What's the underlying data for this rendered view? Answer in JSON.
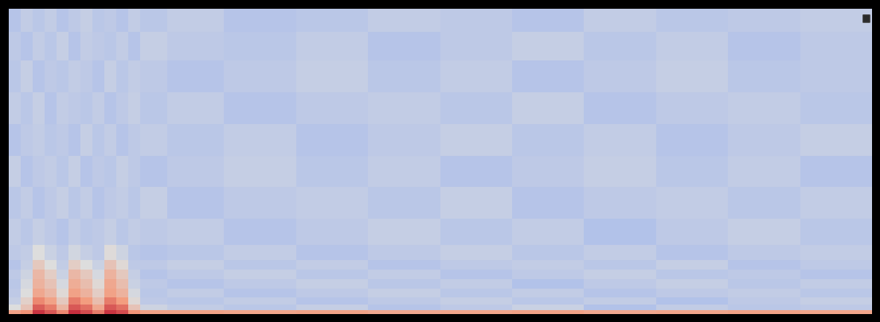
{
  "chart_data": {
    "type": "heatmap",
    "color": "coolwarm",
    "tick_labels": false,
    "xlim": [
      0,
      1085
    ],
    "ylim": [
      0,
      385
    ],
    "zlim": [
      -100,
      0
    ],
    "x": [
      7.5,
      22.5,
      37.5,
      52.5,
      67.5,
      82.5,
      97.5,
      112.5,
      127.5,
      142.5,
      157.5,
      172.5,
      225,
      316,
      406,
      497,
      587,
      678,
      768,
      859,
      949,
      1040
    ],
    "y": [
      2,
      8,
      16,
      26,
      38,
      50,
      62,
      74,
      100,
      140,
      180,
      220,
      260,
      300,
      340,
      372
    ],
    "cells": [
      [
        -28,
        -24,
        -8,
        -14,
        -22,
        -7,
        -12,
        -20,
        -8,
        -12,
        -24,
        -28,
        -28,
        -29,
        -28,
        -30,
        -29,
        -28,
        -30,
        -29,
        -28,
        -29
      ],
      [
        -50,
        -40,
        -15,
        -20,
        -35,
        -14,
        -18,
        -30,
        -14,
        -18,
        -40,
        -54,
        -57,
        -59,
        -56,
        -60,
        -58,
        -55,
        -61,
        -57,
        -59,
        -58
      ],
      [
        -56,
        -45,
        -22,
        -28,
        -42,
        -20,
        -26,
        -38,
        -20,
        -26,
        -48,
        -58,
        -59,
        -57,
        -60,
        -58,
        -56,
        -59,
        -57,
        -61,
        -58,
        -56
      ],
      [
        -58,
        -50,
        -30,
        -36,
        -48,
        -28,
        -34,
        -44,
        -28,
        -34,
        -52,
        -59,
        -57,
        -60,
        -58,
        -56,
        -59,
        -57,
        -60,
        -58,
        -57,
        -59
      ],
      [
        -59,
        -52,
        -34,
        -40,
        -52,
        -32,
        -38,
        -48,
        -30,
        -38,
        -55,
        -58,
        -60,
        -58,
        -56,
        -59,
        -57,
        -61,
        -58,
        -56,
        -59,
        -57
      ],
      [
        -58,
        -54,
        -36,
        -44,
        -55,
        -36,
        -42,
        -52,
        -34,
        -42,
        -56,
        -60,
        -58,
        -56,
        -59,
        -57,
        -60,
        -58,
        -56,
        -59,
        -58,
        -60
      ],
      [
        -60,
        -56,
        -42,
        -50,
        -57,
        -44,
        -50,
        -55,
        -40,
        -48,
        -58,
        -58,
        -56,
        -59,
        -57,
        -60,
        -58,
        -57,
        -59,
        -56,
        -60,
        -58
      ],
      [
        -58,
        -57,
        -50,
        -55,
        -58,
        -53,
        -56,
        -58,
        -49,
        -54,
        -59,
        -60,
        -59,
        -57,
        -60,
        -58,
        -56,
        -59,
        -57,
        -60,
        -58,
        -57
      ],
      [
        -57,
        -59,
        -56,
        -58,
        -60,
        -57,
        -59,
        -58,
        -56,
        -59,
        -57,
        -58,
        -57,
        -60,
        -58,
        -56,
        -59,
        -57,
        -61,
        -58,
        -56,
        -59
      ],
      [
        -59,
        -57,
        -60,
        -58,
        -56,
        -59,
        -57,
        -60,
        -58,
        -57,
        -59,
        -56,
        -60,
        -58,
        -57,
        -59,
        -56,
        -60,
        -58,
        -57,
        -59,
        -57
      ],
      [
        -56,
        -60,
        -58,
        -57,
        -59,
        -56,
        -60,
        -58,
        -59,
        -56,
        -58,
        -60,
        -58,
        -56,
        -59,
        -57,
        -60,
        -58,
        -56,
        -59,
        -57,
        -60
      ],
      [
        -60,
        -58,
        -57,
        -59,
        -58,
        -60,
        -56,
        -59,
        -57,
        -60,
        -58,
        -57,
        -59,
        -57,
        -60,
        -58,
        -56,
        -59,
        -57,
        -60,
        -58,
        -56
      ],
      [
        -57,
        -59,
        -56,
        -60,
        -57,
        -58,
        -59,
        -57,
        -60,
        -58,
        -56,
        -59,
        -57,
        -60,
        -58,
        -57,
        -59,
        -56,
        -60,
        -58,
        -57,
        -59
      ],
      [
        -59,
        -56,
        -60,
        -58,
        -59,
        -57,
        -58,
        -60,
        -56,
        -59,
        -57,
        -58,
        -60,
        -58,
        -56,
        -59,
        -57,
        -60,
        -58,
        -56,
        -59,
        -58
      ],
      [
        -58,
        -60,
        -57,
        -59,
        -56,
        -60,
        -57,
        -58,
        -59,
        -57,
        -60,
        -56,
        -58,
        -59,
        -57,
        -60,
        -58,
        -56,
        -59,
        -57,
        -60,
        -58
      ],
      [
        -60,
        -57,
        -59,
        -57,
        -60,
        -58,
        -56,
        -59,
        -58,
        -60,
        -57,
        -59,
        -57,
        -60,
        -59,
        -57,
        -58,
        -60,
        -57,
        -59,
        -58,
        -57
      ]
    ]
  }
}
